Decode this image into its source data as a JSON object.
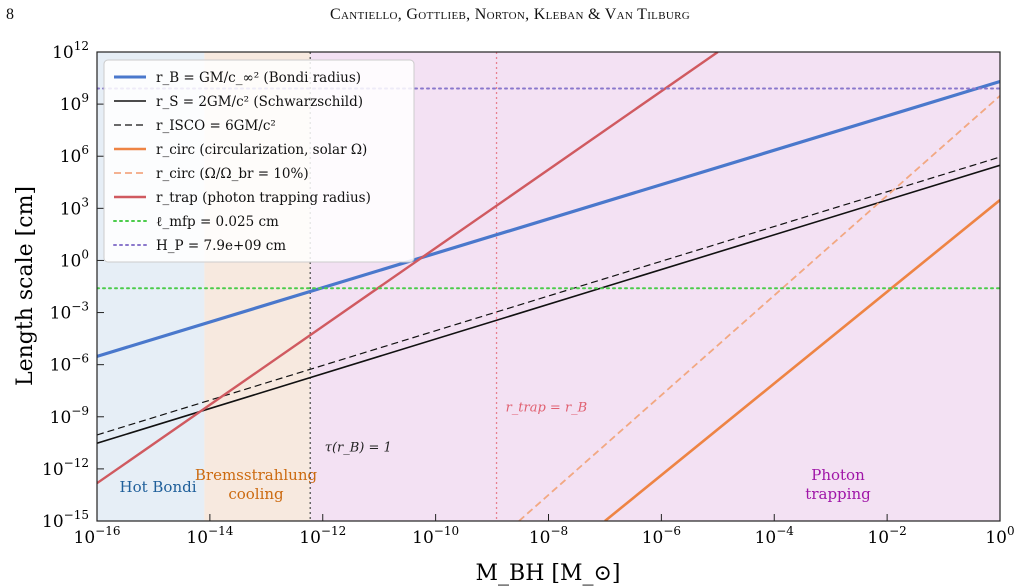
{
  "header": {
    "page_number": "8",
    "running_head": "Cantiello, Gottlieb, Norton, Kleban & Van Tilburg"
  },
  "chart_data": {
    "type": "line",
    "xlabel": "M_BH [M_⊙]",
    "ylabel": "Length scale [cm]",
    "x_scale": "log",
    "y_scale": "log",
    "xlim": [
      1e-16,
      1
    ],
    "ylim": [
      1e-15,
      1000000000000.0
    ],
    "x_ticks": [
      {
        "value": 1e-16,
        "base": "10",
        "exp": "−16"
      },
      {
        "value": 1e-14,
        "base": "10",
        "exp": "−14"
      },
      {
        "value": 1e-12,
        "base": "10",
        "exp": "−12"
      },
      {
        "value": 1e-10,
        "base": "10",
        "exp": "−10"
      },
      {
        "value": 1e-08,
        "base": "10",
        "exp": "−8"
      },
      {
        "value": 1e-06,
        "base": "10",
        "exp": "−6"
      },
      {
        "value": 0.0001,
        "base": "10",
        "exp": "−4"
      },
      {
        "value": 0.01,
        "base": "10",
        "exp": "−2"
      },
      {
        "value": 1,
        "base": "10",
        "exp": "0"
      }
    ],
    "y_ticks": [
      {
        "value": 1e-15,
        "base": "10",
        "exp": "−15"
      },
      {
        "value": 1e-12,
        "base": "10",
        "exp": "−12"
      },
      {
        "value": 1e-09,
        "base": "10",
        "exp": "−9"
      },
      {
        "value": 1e-06,
        "base": "10",
        "exp": "−6"
      },
      {
        "value": 0.001,
        "base": "10",
        "exp": "−3"
      },
      {
        "value": 1,
        "base": "10",
        "exp": "0"
      },
      {
        "value": 1000.0,
        "base": "10",
        "exp": "3"
      },
      {
        "value": 1000000.0,
        "base": "10",
        "exp": "6"
      },
      {
        "value": 1000000000.0,
        "base": "10",
        "exp": "9"
      },
      {
        "value": 1000000000000.0,
        "base": "10",
        "exp": "12"
      }
    ],
    "regions": [
      {
        "label": "Hot Bondi",
        "x_start": 1e-16,
        "x_end": 8e-15,
        "color": "#e6eef6",
        "text_color": "#1f5f9a"
      },
      {
        "label": "Bremsstrahlung cooling",
        "x_start": 8e-15,
        "x_end": 6e-13,
        "color": "#f7e9df",
        "text_color": "#cc6a10"
      },
      {
        "label": "Photon trapping",
        "x_start": 6e-13,
        "x_end": 1,
        "color": "#f3e1f3",
        "text_color": "#a016a8"
      }
    ],
    "series": [
      {
        "name": "r_B = GM/c_∞² (Bondi radius)",
        "color": "#4a78cc",
        "style": "solid",
        "width": 3.2,
        "x": [
          1e-16,
          1
        ],
        "y": [
          3e-06,
          20000000000.0
        ]
      },
      {
        "name": "r_S = 2GM/c² (Schwarzschild)",
        "color": "#111111",
        "style": "solid",
        "width": 1.6,
        "x": [
          1e-16,
          1
        ],
        "y": [
          3e-11,
          300000.0
        ]
      },
      {
        "name": "r_ISCO = 6GM/c²",
        "color": "#111111",
        "style": "dashed",
        "width": 1.2,
        "x": [
          1e-16,
          1
        ],
        "y": [
          9e-11,
          900000.0
        ]
      },
      {
        "name": "r_circ (circularization, solar Ω)",
        "color": "#ee8444",
        "style": "solid",
        "width": 2.6,
        "x": [
          1e-07,
          1
        ],
        "y": [
          1e-15,
          3000.0
        ]
      },
      {
        "name": "r_circ (Ω/Ω_br = 10%)",
        "color": "#f2a882",
        "style": "dashed",
        "width": 1.8,
        "x": [
          3e-09,
          1
        ],
        "y": [
          1e-15,
          3000000000.0
        ]
      },
      {
        "name": "r_trap (photon trapping radius)",
        "color": "#d05a60",
        "style": "solid",
        "width": 2.4,
        "x": [
          1e-16,
          1e-05
        ],
        "y": [
          1.5e-13,
          1000000000000.0
        ]
      },
      {
        "name": "ℓ_mfp = 0.025 cm",
        "color": "#4ccc4c",
        "style": "dotted",
        "width": 2.0,
        "x": [
          1e-16,
          1
        ],
        "y": [
          0.025,
          0.025
        ]
      },
      {
        "name": "H_P = 7.9e+09 cm",
        "color": "#8a78cc",
        "style": "dotted",
        "width": 2.0,
        "x": [
          1e-16,
          1
        ],
        "y": [
          7900000000.0,
          7900000000.0
        ]
      }
    ],
    "vlines": [
      {
        "x": 6e-13,
        "color": "#555555",
        "style": "dotted"
      },
      {
        "x": 1.2e-09,
        "color": "#e88090",
        "style": "dotted"
      }
    ],
    "annotations": [
      {
        "text": "τ(r_B) = 1",
        "x": 1e-12,
        "y": 1e-11,
        "color": "#222222"
      },
      {
        "text": "r_trap = r_B",
        "x": 1.6e-09,
        "y": 2e-09,
        "color": "#e06070"
      }
    ],
    "legend": {
      "position": "upper-left"
    }
  }
}
